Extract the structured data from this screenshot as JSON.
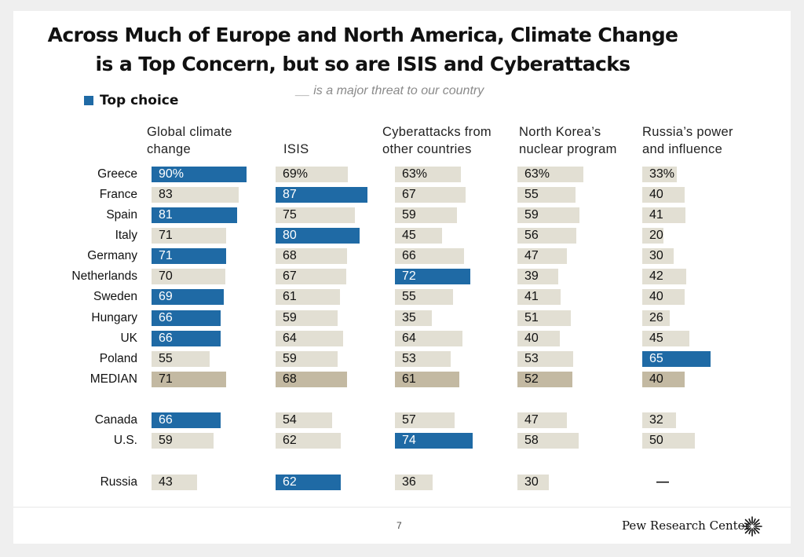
{
  "title_line1": "Across Much of Europe and North America, Climate Change",
  "title_line2": "is a Top Concern, but so are ISIS and Cyberattacks",
  "subtitle": "__ is a major threat to our country",
  "legend_label": "Top choice",
  "page_number": "7",
  "brand": "Pew Research Center",
  "colors": {
    "top_choice": "#1f6aa5",
    "other": "#e2dfd3",
    "median": "#c3b9a2"
  },
  "chart_data": {
    "type": "bar",
    "title": "Across Much of Europe and North America, Climate Change is a Top Concern, but so are ISIS and Cyberattacks",
    "subtitle": "__ is a major threat to our country",
    "legend": [
      {
        "label": "Top choice",
        "color": "#1f6aa5"
      }
    ],
    "unit": "%",
    "categories": [
      "Greece",
      "France",
      "Spain",
      "Italy",
      "Germany",
      "Netherlands",
      "Sweden",
      "Hungary",
      "UK",
      "Poland",
      "MEDIAN",
      "Canada",
      "U.S.",
      "Russia"
    ],
    "series": [
      {
        "name": "Global climate change",
        "values": [
          90,
          83,
          81,
          71,
          71,
          70,
          69,
          66,
          66,
          55,
          71,
          66,
          59,
          43
        ],
        "labels": [
          "90%",
          "83",
          "81",
          "71",
          "71",
          "70",
          "69",
          "66",
          "66",
          "55",
          "71",
          "66",
          "59",
          "43"
        ],
        "top_choice": [
          true,
          false,
          true,
          false,
          true,
          false,
          true,
          true,
          true,
          false,
          false,
          true,
          false,
          false
        ]
      },
      {
        "name": "ISIS",
        "values": [
          69,
          87,
          75,
          80,
          68,
          67,
          61,
          59,
          64,
          59,
          68,
          54,
          62,
          62
        ],
        "labels": [
          "69%",
          "87",
          "75",
          "80",
          "68",
          "67",
          "61",
          "59",
          "64",
          "59",
          "68",
          "54",
          "62",
          "62"
        ],
        "top_choice": [
          false,
          true,
          false,
          true,
          false,
          false,
          false,
          false,
          false,
          false,
          false,
          false,
          false,
          true
        ]
      },
      {
        "name": "Cyberattacks from other countries",
        "values": [
          63,
          67,
          59,
          45,
          66,
          72,
          55,
          35,
          64,
          53,
          61,
          57,
          74,
          36
        ],
        "labels": [
          "63%",
          "67",
          "59",
          "45",
          "66",
          "72",
          "55",
          "35",
          "64",
          "53",
          "61",
          "57",
          "74",
          "36"
        ],
        "top_choice": [
          false,
          false,
          false,
          false,
          false,
          true,
          false,
          false,
          false,
          false,
          false,
          false,
          true,
          false
        ]
      },
      {
        "name": "North Korea’s nuclear program",
        "values": [
          63,
          55,
          59,
          56,
          47,
          39,
          41,
          51,
          40,
          53,
          52,
          47,
          58,
          30
        ],
        "labels": [
          "63%",
          "55",
          "59",
          "56",
          "47",
          "39",
          "41",
          "51",
          "40",
          "53",
          "52",
          "47",
          "58",
          "30"
        ],
        "top_choice": [
          false,
          false,
          false,
          false,
          false,
          false,
          false,
          false,
          false,
          false,
          false,
          false,
          false,
          false
        ]
      },
      {
        "name": "Russia’s power and influence",
        "values": [
          33,
          40,
          41,
          20,
          30,
          42,
          40,
          26,
          45,
          65,
          40,
          32,
          50,
          null
        ],
        "labels": [
          "33%",
          "40",
          "41",
          "20",
          "30",
          "42",
          "40",
          "26",
          "45",
          "65",
          "40",
          "32",
          "50",
          "—"
        ],
        "top_choice": [
          false,
          false,
          false,
          false,
          false,
          false,
          false,
          false,
          false,
          true,
          false,
          false,
          false,
          false
        ]
      }
    ],
    "column_headers": [
      "Global climate\nchange",
      "ISIS",
      "Cyberattacks from\nother countries",
      "North Korea’s\nnuclear program",
      "Russia’s power\nand influence"
    ]
  }
}
